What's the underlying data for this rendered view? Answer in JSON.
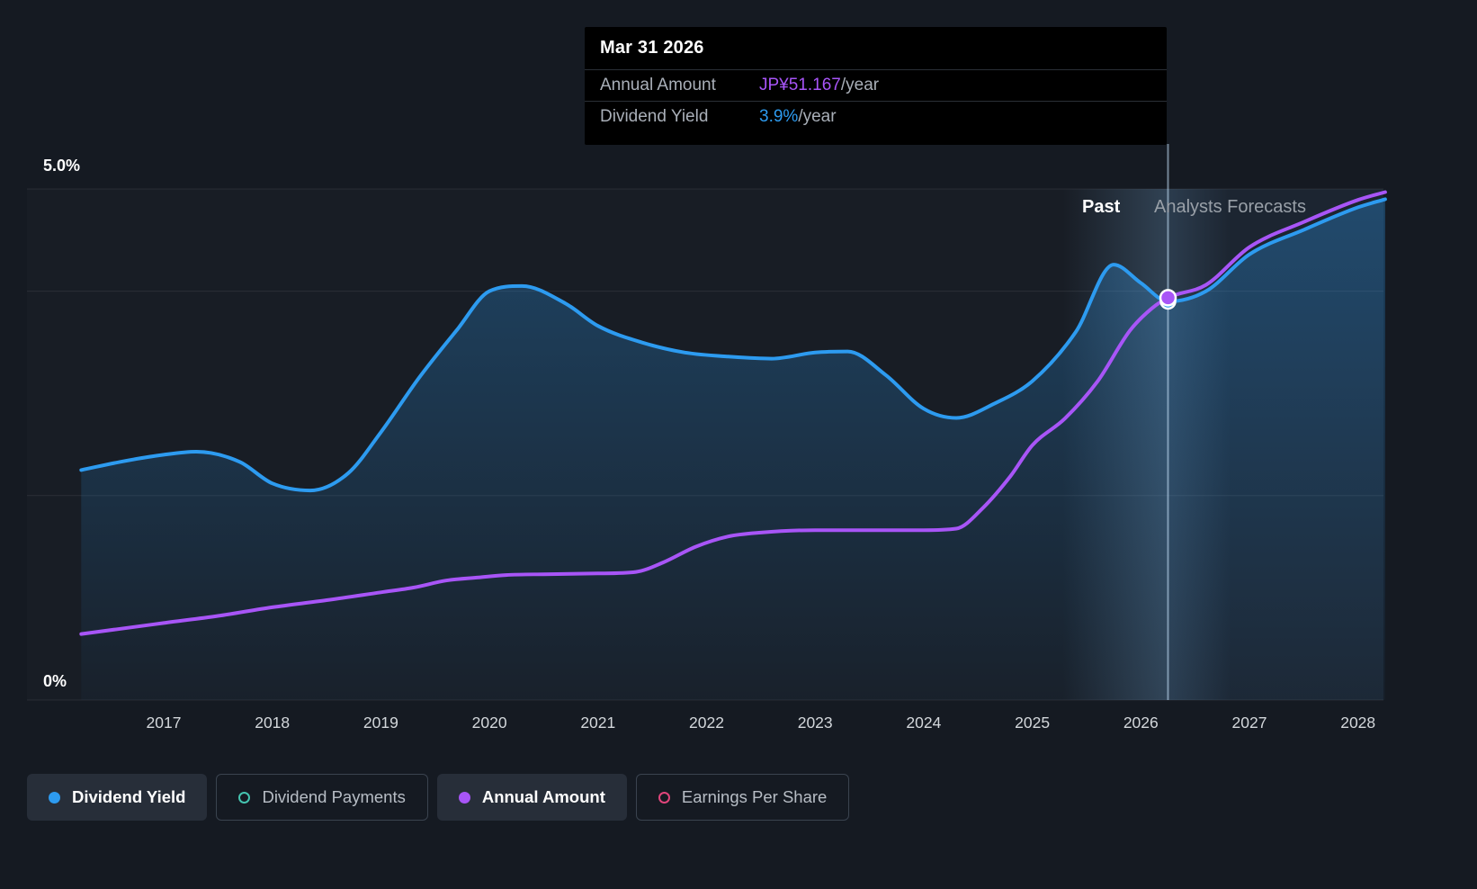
{
  "colors": {
    "background": "#151a22",
    "dividend_yield": "#2d9bf0",
    "dividend_payments": "#45c4b0",
    "annual_amount": "#a855f7",
    "earnings_per_share": "#e0457b",
    "tooltip_bg": "#000000"
  },
  "tooltip": {
    "title": "Mar 31 2026",
    "rows": [
      {
        "label": "Annual Amount",
        "value": "JP¥51.167",
        "suffix": "/year"
      },
      {
        "label": "Dividend Yield",
        "value": "3.9%",
        "suffix": "/year"
      }
    ]
  },
  "y_axis": {
    "top_label": "5.0%",
    "bottom_label": "0%"
  },
  "regions": {
    "past_label": "Past",
    "forecast_label": "Analysts Forecasts"
  },
  "legend": [
    {
      "label": "Dividend Yield",
      "color": "#2d9bf0",
      "style": "filled",
      "active": true
    },
    {
      "label": "Dividend Payments",
      "color": "#45c4b0",
      "style": "ring",
      "active": false
    },
    {
      "label": "Annual Amount",
      "color": "#a855f7",
      "style": "filled",
      "active": true
    },
    {
      "label": "Earnings Per Share",
      "color": "#e0457b",
      "style": "ring",
      "active": false
    }
  ],
  "chart_data": {
    "type": "line",
    "title": "Dividend yield and annual amount, past and analysts forecasts",
    "x_ticks": [
      2017,
      2018,
      2019,
      2020,
      2021,
      2022,
      2023,
      2024,
      2025,
      2026,
      2027,
      2028
    ],
    "x_range": [
      2016.24,
      2028.25
    ],
    "ylim_percent": [
      0,
      5.0
    ],
    "gridlines_percent": [
      5.0,
      4.0,
      2.0,
      0
    ],
    "yen_per_percent_scale": 13,
    "divider_year": 2026.25,
    "legend_position": "bottom",
    "marker": {
      "date": "Mar 31 2026",
      "year": 2026.25,
      "dividend_yield_percent": 3.9,
      "annual_amount_jpy": 51.167
    },
    "series": [
      {
        "name": "Dividend Yield",
        "unit": "percent",
        "color": "#2d9bf0",
        "area": true,
        "points": [
          [
            2016.24,
            2.25
          ],
          [
            2016.6,
            2.33
          ],
          [
            2017,
            2.4
          ],
          [
            2017.3,
            2.43
          ],
          [
            2017.7,
            2.33
          ],
          [
            2018,
            2.12
          ],
          [
            2018.35,
            2.05
          ],
          [
            2018.7,
            2.22
          ],
          [
            2019,
            2.62
          ],
          [
            2019.35,
            3.15
          ],
          [
            2019.7,
            3.62
          ],
          [
            2020,
            4.0
          ],
          [
            2020.3,
            4.05
          ],
          [
            2020.7,
            3.88
          ],
          [
            2021,
            3.66
          ],
          [
            2021.4,
            3.5
          ],
          [
            2021.8,
            3.4
          ],
          [
            2022.2,
            3.36
          ],
          [
            2022.6,
            3.34
          ],
          [
            2023,
            3.4
          ],
          [
            2023.3,
            3.41
          ],
          [
            2023.65,
            3.18
          ],
          [
            2024,
            2.85
          ],
          [
            2024.3,
            2.76
          ],
          [
            2024.65,
            2.9
          ],
          [
            2025,
            3.12
          ],
          [
            2025.4,
            3.6
          ],
          [
            2025.75,
            4.26
          ],
          [
            2026,
            4.08
          ],
          [
            2026.25,
            3.9
          ],
          [
            2026.6,
            4.0
          ],
          [
            2027,
            4.36
          ],
          [
            2027.5,
            4.6
          ],
          [
            2028,
            4.82
          ],
          [
            2028.25,
            4.9
          ]
        ]
      },
      {
        "name": "Annual Amount",
        "unit": "jpy",
        "color": "#a855f7",
        "area": false,
        "points": [
          [
            2016.24,
            8.4
          ],
          [
            2017,
            9.8
          ],
          [
            2017.5,
            10.7
          ],
          [
            2018,
            11.8
          ],
          [
            2018.5,
            12.7
          ],
          [
            2019,
            13.7
          ],
          [
            2019.3,
            14.3
          ],
          [
            2019.6,
            15.2
          ],
          [
            2019.9,
            15.6
          ],
          [
            2020.15,
            15.9
          ],
          [
            2020.5,
            16.0
          ],
          [
            2021,
            16.1
          ],
          [
            2021.35,
            16.3
          ],
          [
            2021.6,
            17.5
          ],
          [
            2021.9,
            19.5
          ],
          [
            2022.2,
            20.8
          ],
          [
            2022.5,
            21.3
          ],
          [
            2023,
            21.6
          ],
          [
            2023.5,
            21.6
          ],
          [
            2024,
            21.6
          ],
          [
            2024.3,
            21.8
          ],
          [
            2024.55,
            24.5
          ],
          [
            2024.8,
            28.5
          ],
          [
            2025,
            32.4
          ],
          [
            2025.3,
            35.8
          ],
          [
            2025.6,
            40.5
          ],
          [
            2025.9,
            47.0
          ],
          [
            2026.1,
            49.8
          ],
          [
            2026.25,
            51.167
          ],
          [
            2026.6,
            52.8
          ],
          [
            2027,
            57.6
          ],
          [
            2027.5,
            60.8
          ],
          [
            2028,
            63.6
          ],
          [
            2028.25,
            64.6
          ]
        ]
      }
    ]
  }
}
